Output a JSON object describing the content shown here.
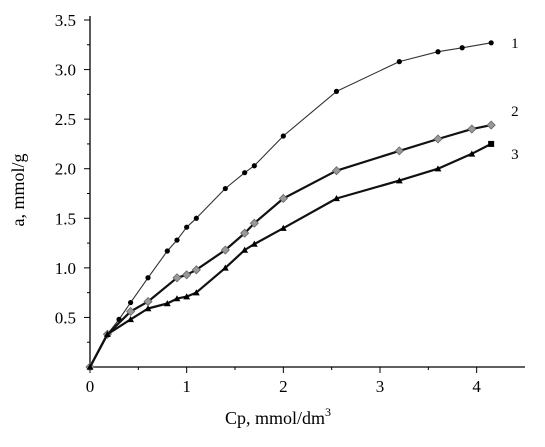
{
  "chart_data": {
    "type": "line",
    "xlabel": "Cp, mmol/dm",
    "xlabel_superscript": "3",
    "ylabel": "a, mmol/g",
    "xlim": [
      0,
      4.5
    ],
    "ylim": [
      0,
      3.5
    ],
    "xticks": [
      "0",
      "1",
      "2",
      "3",
      "4"
    ],
    "yticks": [
      "0.5",
      "1.0",
      "1.5",
      "2.0",
      "2.5",
      "3.0",
      "3.5"
    ],
    "grid": false,
    "series": [
      {
        "name": "1",
        "color": "#333333",
        "marker": "circle",
        "x": [
          0,
          0.18,
          0.3,
          0.42,
          0.6,
          0.8,
          0.9,
          1.0,
          1.1,
          1.4,
          1.6,
          1.7,
          2.0,
          2.55,
          3.2,
          3.6,
          3.85,
          4.15
        ],
        "y": [
          0,
          0.33,
          0.48,
          0.65,
          0.9,
          1.17,
          1.28,
          1.41,
          1.5,
          1.8,
          1.96,
          2.03,
          2.33,
          2.78,
          3.08,
          3.18,
          3.22,
          3.27
        ]
      },
      {
        "name": "2",
        "color": "#111111",
        "marker": "diamond",
        "x": [
          0,
          0.18,
          0.42,
          0.6,
          0.9,
          1.0,
          1.1,
          1.4,
          1.6,
          1.7,
          2.0,
          2.55,
          3.2,
          3.6,
          3.95,
          4.15
        ],
        "y": [
          0,
          0.33,
          0.56,
          0.66,
          0.9,
          0.93,
          0.98,
          1.18,
          1.35,
          1.45,
          1.7,
          1.98,
          2.18,
          2.3,
          2.4,
          2.44
        ]
      },
      {
        "name": "3",
        "color": "#111111",
        "marker": "triangle",
        "x": [
          0,
          0.18,
          0.42,
          0.6,
          0.8,
          0.9,
          1.0,
          1.1,
          1.4,
          1.6,
          1.7,
          2.0,
          2.55,
          3.2,
          3.6,
          3.95,
          4.15
        ],
        "y": [
          0,
          0.33,
          0.48,
          0.59,
          0.64,
          0.69,
          0.71,
          0.75,
          1.0,
          1.18,
          1.24,
          1.4,
          1.7,
          1.88,
          2.0,
          2.15,
          2.25
        ]
      }
    ]
  }
}
